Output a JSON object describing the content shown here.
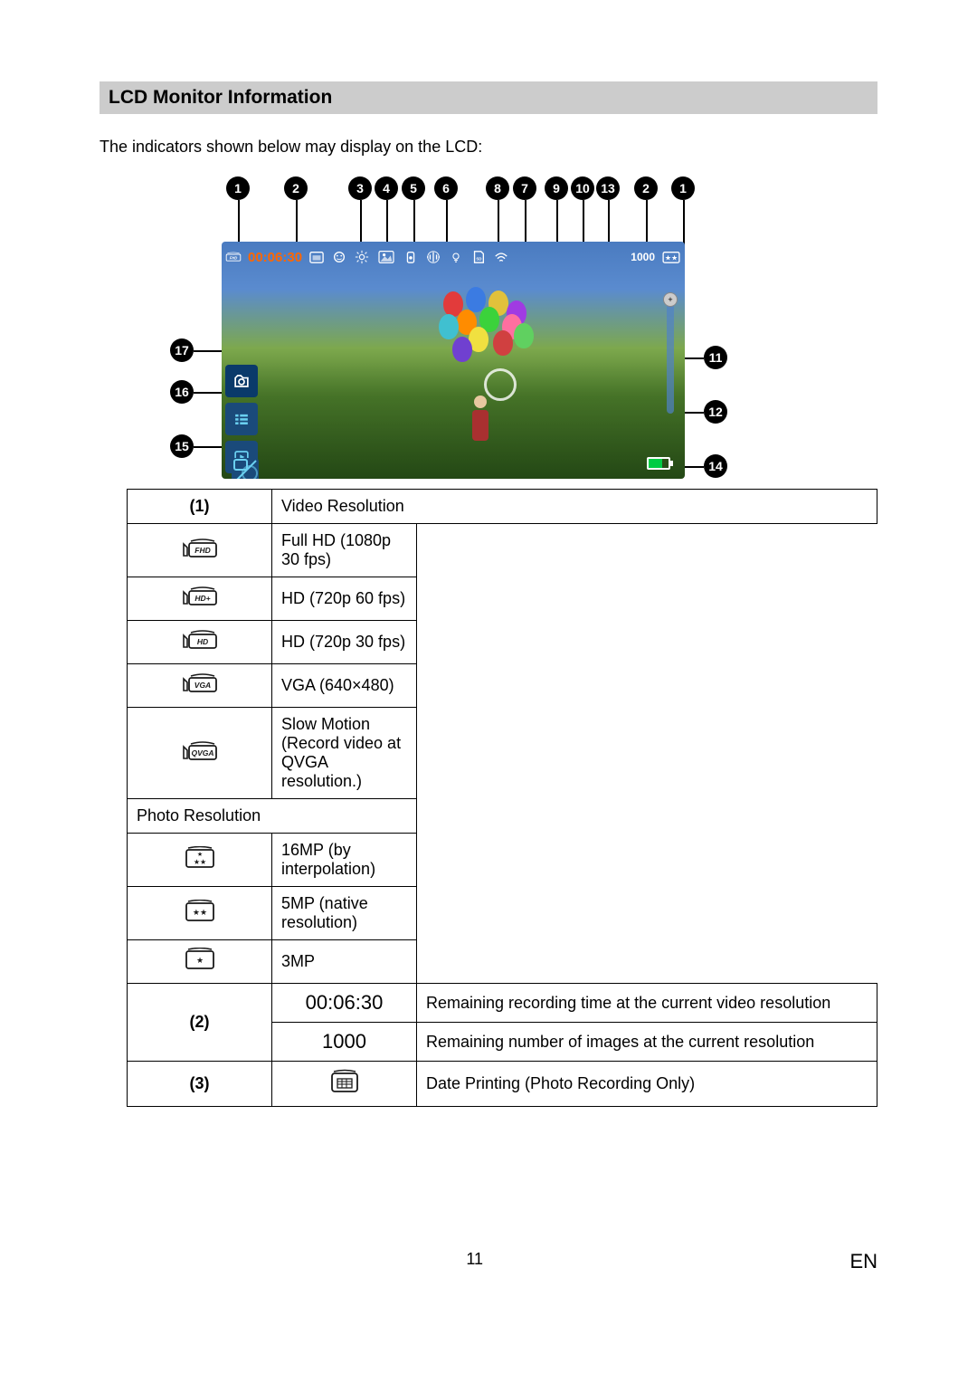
{
  "section": {
    "title": "LCD Monitor Information"
  },
  "intro": "The indicators shown below may display on the LCD:",
  "lcd": {
    "time": "00:06:30",
    "count": "1000"
  },
  "callouts_top": [
    "1",
    "2",
    "3",
    "4",
    "5",
    "6",
    "8",
    "7",
    "9",
    "10",
    "13",
    "2",
    "1"
  ],
  "callouts_left": [
    "17",
    "16",
    "15"
  ],
  "callouts_right": [
    "11",
    "12",
    "14"
  ],
  "colors": {
    "badge_bg": "#000000",
    "badge_fg": "#ffffff",
    "header_bg": "#cccccc",
    "lcd_time": "#ff6600",
    "icon_stroke": "#1a1a1a"
  },
  "balloon_colors": [
    "#e23b3b",
    "#3b7be2",
    "#e2c13b",
    "#a03be2",
    "#ff8c00",
    "#3bd23b",
    "#ff6fa0",
    "#40c0d0",
    "#f0e040",
    "#d04040",
    "#7040d0",
    "#60d060"
  ],
  "table": {
    "row1": {
      "num": "(1)",
      "video_header": "Video Resolution",
      "video": [
        {
          "icon": "FHD",
          "desc": "Full HD (1080p 30 fps)"
        },
        {
          "icon": "HD+",
          "desc": "HD (720p 60 fps)"
        },
        {
          "icon": "HD",
          "desc": "HD (720p 30 fps)"
        },
        {
          "icon": "VGA",
          "desc": "VGA (640×480)"
        },
        {
          "icon": "QVGA",
          "desc": "Slow Motion (Record video at QVGA resolution.)"
        }
      ],
      "photo_header": "Photo Resolution",
      "photo": [
        {
          "stars": 3,
          "desc": "16MP (by interpolation)"
        },
        {
          "stars": 2,
          "desc": "5MP (native resolution)"
        },
        {
          "stars": 1,
          "desc": "3MP"
        }
      ]
    },
    "row2": {
      "num": "(2)",
      "items": [
        {
          "icon_text": "00:06:30",
          "desc": "Remaining recording time at the current video resolution"
        },
        {
          "icon_text": "1000",
          "desc": "Remaining number of images at the current resolution"
        }
      ]
    },
    "row3": {
      "num": "(3)",
      "desc": "Date Printing (Photo Recording Only)"
    }
  },
  "footer": {
    "page": "11",
    "lang": "EN"
  }
}
